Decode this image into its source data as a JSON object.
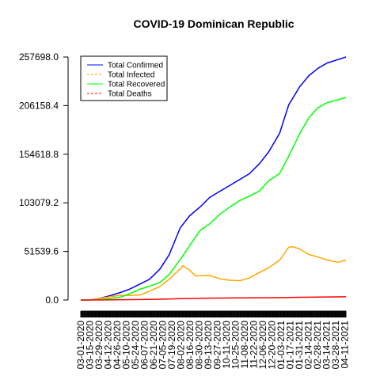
{
  "chart_data": {
    "type": "line",
    "title": "COVID-19 Dominican Republic",
    "xlabel": "",
    "ylabel": "",
    "y_ticks": [
      "0.0",
      "51539.6",
      "103079.2",
      "154618.8",
      "206158.4",
      "257698.0"
    ],
    "ylim": [
      0,
      257698
    ],
    "x_ticks": [
      "03-01-2020",
      "03-15-2020",
      "03-29-2020",
      "04-12-2020",
      "04-26-2020",
      "05-10-2020",
      "05-24-2020",
      "06-07-2020",
      "06-21-2020",
      "07-05-2020",
      "07-19-2020",
      "08-02-2020",
      "08-16-2020",
      "08-30-2020",
      "09-13-2020",
      "09-27-2020",
      "10-11-2020",
      "10-25-2020",
      "11-08-2020",
      "11-22-2020",
      "12-06-2020",
      "12-20-2020",
      "01-03-2021",
      "01-17-2021",
      "01-31-2021",
      "02-14-2021",
      "02-28-2021",
      "03-14-2021",
      "03-28-2021",
      "04-11-2021"
    ],
    "x_range": [
      "2020-03-01",
      "2021-04-13"
    ],
    "legend_position": "top-left",
    "grid": false,
    "series": [
      {
        "name": "Total Confirmed",
        "color": "#0000ff",
        "style": "solid",
        "x": [
          "2020-03-01",
          "2020-03-15",
          "2020-04-01",
          "2020-04-15",
          "2020-05-01",
          "2020-05-15",
          "2020-06-01",
          "2020-06-15",
          "2020-07-01",
          "2020-07-15",
          "2020-08-01",
          "2020-08-15",
          "2020-09-01",
          "2020-09-15",
          "2020-10-01",
          "2020-10-15",
          "2020-11-01",
          "2020-11-15",
          "2020-12-01",
          "2020-12-15",
          "2021-01-01",
          "2021-01-15",
          "2021-02-01",
          "2021-02-15",
          "2021-03-01",
          "2021-03-15",
          "2021-04-01",
          "2021-04-13"
        ],
        "values": [
          0,
          100,
          2000,
          4600,
          8000,
          11500,
          17300,
          22100,
          33000,
          48000,
          76500,
          89000,
          99000,
          108600,
          115300,
          121000,
          128000,
          133800,
          144600,
          157000,
          177000,
          207000,
          226300,
          238000,
          245700,
          251300,
          255000,
          257698
        ]
      },
      {
        "name": "Total Infected",
        "color": "#ffa500",
        "style": "dashed",
        "x": [
          "2020-03-01",
          "2020-03-15",
          "2020-04-01",
          "2020-04-15",
          "2020-05-01",
          "2020-05-15",
          "2020-06-01",
          "2020-06-15",
          "2020-07-01",
          "2020-07-15",
          "2020-08-01",
          "2020-08-05",
          "2020-08-15",
          "2020-08-25",
          "2020-09-15",
          "2020-10-01",
          "2020-10-15",
          "2020-11-01",
          "2020-11-15",
          "2020-12-01",
          "2020-12-15",
          "2021-01-01",
          "2021-01-15",
          "2021-01-22",
          "2021-02-01",
          "2021-02-15",
          "2021-03-01",
          "2021-03-15",
          "2021-04-01",
          "2021-04-13"
        ],
        "values": [
          0,
          100,
          1800,
          3500,
          5000,
          4800,
          5500,
          9500,
          14400,
          22000,
          33000,
          36500,
          32000,
          25500,
          26100,
          22600,
          21000,
          20600,
          23300,
          29200,
          34200,
          42400,
          56000,
          56500,
          54000,
          48300,
          45700,
          42500,
          40000,
          42400
        ]
      },
      {
        "name": "Total Recovered",
        "color": "#00ff00",
        "style": "solid",
        "x": [
          "2020-03-01",
          "2020-04-01",
          "2020-05-01",
          "2020-05-15",
          "2020-06-01",
          "2020-06-15",
          "2020-07-01",
          "2020-07-15",
          "2020-08-01",
          "2020-08-15",
          "2020-09-01",
          "2020-09-15",
          "2020-10-01",
          "2020-10-15",
          "2020-11-01",
          "2020-11-15",
          "2020-12-01",
          "2020-12-15",
          "2021-01-01",
          "2021-01-15",
          "2021-02-01",
          "2021-02-15",
          "2021-03-01",
          "2021-03-15",
          "2021-04-01",
          "2021-04-13"
        ],
        "values": [
          0,
          400,
          3000,
          6600,
          11700,
          14800,
          18700,
          27000,
          42900,
          57000,
          74000,
          80600,
          90800,
          98000,
          105600,
          110100,
          115600,
          126300,
          134200,
          152600,
          176600,
          193300,
          204000,
          209300,
          212400,
          214800
        ]
      },
      {
        "name": "Total Deaths",
        "color": "#ff0000",
        "style": "dashed",
        "x": [
          "2020-03-01",
          "2020-04-01",
          "2020-05-01",
          "2020-06-01",
          "2020-07-01",
          "2020-08-01",
          "2020-09-01",
          "2020-10-01",
          "2020-11-01",
          "2020-12-01",
          "2021-01-01",
          "2021-02-01",
          "2021-03-01",
          "2021-04-13"
        ],
        "values": [
          0,
          100,
          300,
          500,
          800,
          1400,
          1900,
          2100,
          2300,
          2400,
          2500,
          2900,
          3200,
          3400
        ]
      }
    ]
  }
}
